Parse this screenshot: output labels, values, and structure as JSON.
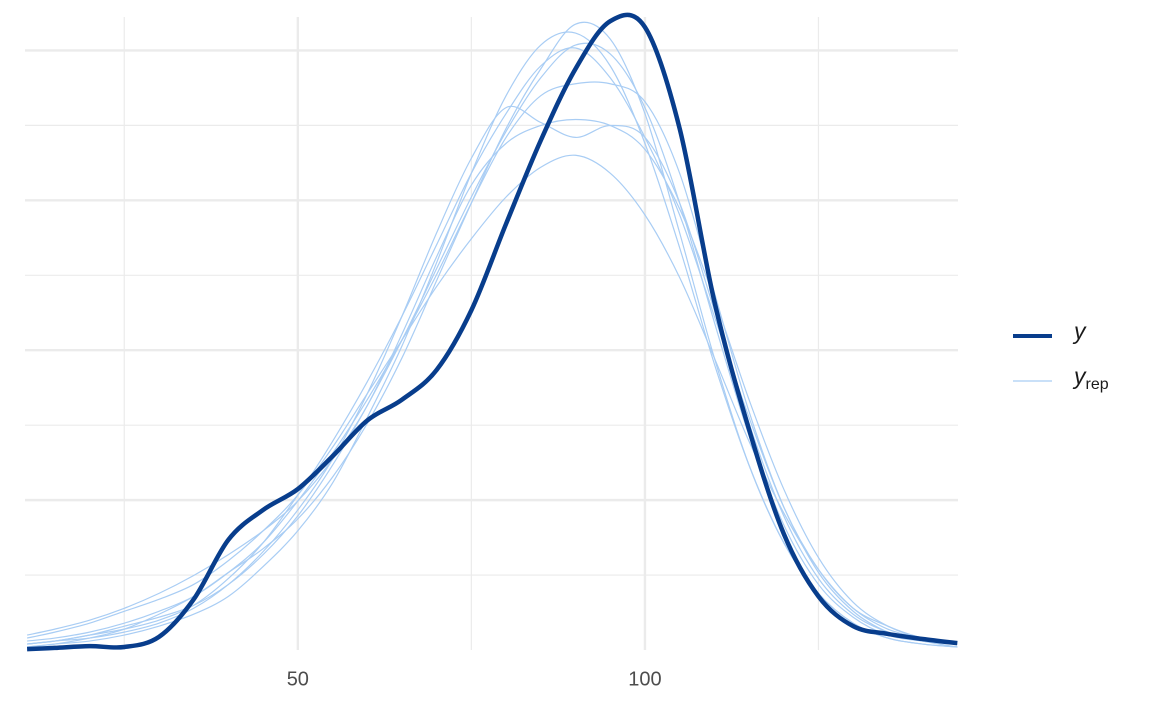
{
  "chart_data": {
    "type": "line",
    "x": [
      11,
      15,
      20,
      25,
      30,
      35,
      40,
      45,
      50,
      55,
      60,
      65,
      70,
      75,
      80,
      85,
      90,
      95,
      100,
      105,
      110,
      115,
      120,
      125,
      130,
      135,
      140,
      145
    ],
    "xlim": [
      10.7,
      145.1
    ],
    "xticks": [
      50,
      100
    ],
    "ylim": [
      0,
      0.02124
    ],
    "grid": true,
    "legend": "right",
    "series": [
      {
        "name": "y",
        "color": "#083D8C",
        "values": [
          3e-05,
          7e-05,
          0.00013,
          0.0001,
          0.00044,
          0.0017,
          0.0037,
          0.0047,
          0.0054,
          0.0065,
          0.0077,
          0.0084,
          0.0094,
          0.0114,
          0.0143,
          0.0171,
          0.0195,
          0.0211,
          0.0209,
          0.0175,
          0.0117,
          0.0074,
          0.0039,
          0.0018,
          0.0008,
          0.00054,
          0.00037,
          0.00023
        ]
      },
      {
        "name": "y",
        "subscript": "rep",
        "color": "#A9CDF4",
        "draws": [
          [
            0.0002,
            0.0003,
            0.0005,
            0.0008,
            0.0011,
            0.0015,
            0.0022,
            0.0032,
            0.0045,
            0.0062,
            0.0082,
            0.0104,
            0.0128,
            0.0152,
            0.0174,
            0.0192,
            0.0203,
            0.02,
            0.0182,
            0.015,
            0.011,
            0.0072,
            0.0042,
            0.0022,
            0.0011,
            0.0005,
            0.0003,
            0.0002
          ],
          [
            0.0004,
            0.0006,
            0.0009,
            0.0013,
            0.0017,
            0.0022,
            0.003,
            0.004,
            0.0052,
            0.0068,
            0.0086,
            0.0104,
            0.0122,
            0.0138,
            0.0152,
            0.0162,
            0.0166,
            0.016,
            0.0146,
            0.0125,
            0.0098,
            0.007,
            0.0046,
            0.0027,
            0.0014,
            0.0007,
            0.0004,
            0.0002
          ],
          [
            0.0001,
            0.0002,
            0.0003,
            0.0005,
            0.0008,
            0.0012,
            0.0018,
            0.0028,
            0.004,
            0.0056,
            0.0078,
            0.0102,
            0.013,
            0.016,
            0.0186,
            0.0203,
            0.0207,
            0.0196,
            0.017,
            0.0135,
            0.0096,
            0.0062,
            0.0036,
            0.0019,
            0.0009,
            0.0004,
            0.0002,
            0.0001
          ],
          [
            0.0003,
            0.0004,
            0.0006,
            0.0009,
            0.0013,
            0.0018,
            0.0026,
            0.0036,
            0.005,
            0.0066,
            0.0084,
            0.0104,
            0.0126,
            0.015,
            0.0172,
            0.0186,
            0.019,
            0.019,
            0.0184,
            0.016,
            0.012,
            0.008,
            0.0048,
            0.0027,
            0.0014,
            0.0008,
            0.0004,
            0.0002
          ],
          [
            0.0002,
            0.0003,
            0.0004,
            0.0006,
            0.0009,
            0.0014,
            0.0022,
            0.0033,
            0.0047,
            0.0064,
            0.0086,
            0.0112,
            0.014,
            0.0165,
            0.0182,
            0.0177,
            0.0172,
            0.0176,
            0.0172,
            0.015,
            0.0114,
            0.0076,
            0.0045,
            0.0024,
            0.0012,
            0.0006,
            0.0003,
            0.0001
          ],
          [
            0.0001,
            0.0002,
            0.0004,
            0.0007,
            0.0012,
            0.0018,
            0.0026,
            0.0034,
            0.0044,
            0.0058,
            0.0076,
            0.0098,
            0.0124,
            0.015,
            0.0175,
            0.0195,
            0.021,
            0.0205,
            0.018,
            0.014,
            0.0098,
            0.0062,
            0.0036,
            0.0019,
            0.0009,
            0.0004,
            0.0002,
            0.0001
          ],
          [
            0.0005,
            0.0007,
            0.001,
            0.0014,
            0.0019,
            0.0025,
            0.0032,
            0.004,
            0.005,
            0.0064,
            0.0082,
            0.0106,
            0.0132,
            0.0156,
            0.017,
            0.0176,
            0.0178,
            0.0176,
            0.0168,
            0.0148,
            0.0118,
            0.0084,
            0.0054,
            0.0031,
            0.0016,
            0.0008,
            0.0004,
            0.0002
          ],
          [
            0.0002,
            0.0003,
            0.0005,
            0.0007,
            0.001,
            0.0015,
            0.0024,
            0.0036,
            0.0052,
            0.007,
            0.009,
            0.0112,
            0.0136,
            0.016,
            0.018,
            0.0196,
            0.0202,
            0.0192,
            0.0172,
            0.0146,
            0.0112,
            0.0078,
            0.0048,
            0.0026,
            0.0013,
            0.0006,
            0.0003,
            0.0002
          ]
        ]
      }
    ]
  }
}
